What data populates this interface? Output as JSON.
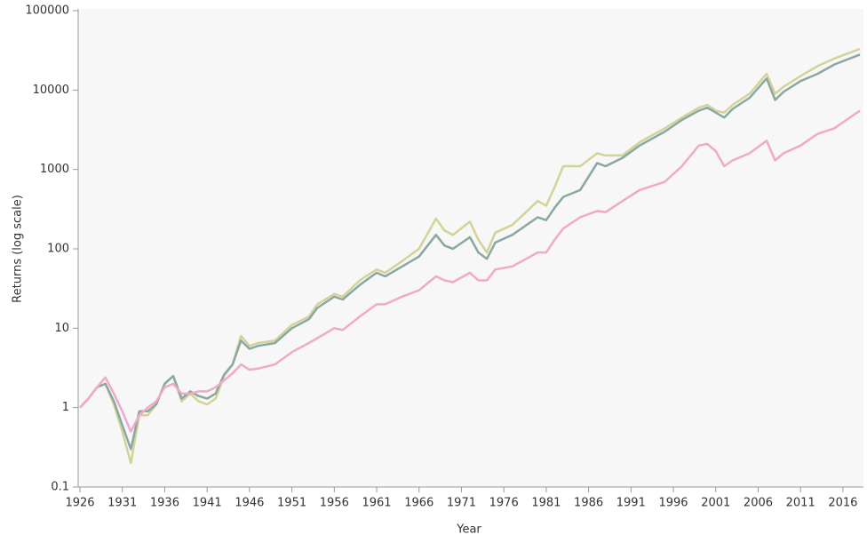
{
  "chart_data": {
    "type": "line",
    "x_label": "Year",
    "y_label": "Returns (log scale)",
    "log_y": true,
    "x": [
      1926,
      1927,
      1928,
      1929,
      1930,
      1931,
      1932,
      1933,
      1934,
      1935,
      1936,
      1937,
      1938,
      1939,
      1940,
      1941,
      1942,
      1943,
      1944,
      1945,
      1946,
      1947,
      1949,
      1951,
      1953,
      1954,
      1956,
      1957,
      1959,
      1961,
      1962,
      1964,
      1966,
      1968,
      1969,
      1970,
      1972,
      1973,
      1974,
      1975,
      1977,
      1980,
      1981,
      1982,
      1983,
      1985,
      1987,
      1988,
      1990,
      1992,
      1995,
      1997,
      1999,
      2000,
      2001,
      2002,
      2003,
      2005,
      2007,
      2008,
      2009,
      2011,
      2013,
      2015,
      2018
    ],
    "series": [
      {
        "color": "#d2d396",
        "values": [
          1,
          1.3,
          1.8,
          2,
          1.1,
          0.5,
          0.2,
          0.8,
          0.8,
          1.1,
          2,
          2.5,
          1.2,
          1.5,
          1.2,
          1.1,
          1.3,
          2.5,
          3.5,
          8,
          6,
          6.5,
          7,
          11,
          14,
          20,
          27,
          25,
          40,
          55,
          50,
          70,
          100,
          240,
          170,
          150,
          220,
          130,
          90,
          160,
          200,
          400,
          350,
          600,
          1100,
          1100,
          1600,
          1500,
          1500,
          2200,
          3300,
          4500,
          6000,
          6500,
          5500,
          5200,
          6500,
          9000,
          16000,
          9000,
          11000,
          15000,
          20000,
          25000,
          33000
        ]
      },
      {
        "color": "#8aa8a3",
        "values": [
          1,
          1.3,
          1.8,
          2,
          1.2,
          0.6,
          0.3,
          0.9,
          0.9,
          1.1,
          2,
          2.5,
          1.3,
          1.6,
          1.4,
          1.3,
          1.5,
          2.6,
          3.5,
          7,
          5.5,
          6,
          6.5,
          10,
          13,
          18,
          25,
          23,
          35,
          50,
          45,
          60,
          80,
          150,
          110,
          100,
          140,
          90,
          75,
          120,
          150,
          250,
          230,
          330,
          450,
          550,
          1200,
          1100,
          1400,
          2000,
          3000,
          4200,
          5500,
          6000,
          5200,
          4500,
          5800,
          8000,
          14000,
          7500,
          9500,
          13000,
          16000,
          21000,
          28000
        ]
      },
      {
        "color": "#f2a8c9",
        "values": [
          1,
          1.3,
          1.8,
          2.4,
          1.5,
          0.9,
          0.5,
          0.8,
          1,
          1.2,
          1.8,
          2,
          1.5,
          1.5,
          1.6,
          1.6,
          1.8,
          2.2,
          2.7,
          3.5,
          3,
          3.1,
          3.5,
          5,
          6.5,
          7.5,
          10,
          9.5,
          14,
          20,
          20,
          25,
          30,
          45,
          40,
          38,
          50,
          40,
          40,
          55,
          60,
          90,
          90,
          130,
          180,
          250,
          300,
          290,
          400,
          550,
          700,
          1100,
          2000,
          2100,
          1700,
          1100,
          1300,
          1600,
          2300,
          1300,
          1600,
          2000,
          2800,
          3300,
          5500
        ]
      }
    ],
    "xlim": [
      1926,
      2018
    ],
    "ylim": [
      0.1,
      100000
    ],
    "xticks": [
      1926,
      1931,
      1936,
      1941,
      1946,
      1951,
      1956,
      1961,
      1966,
      1971,
      1976,
      1981,
      1986,
      1991,
      1996,
      2001,
      2006,
      2011,
      2016
    ],
    "yticks": [
      0.1,
      1,
      10,
      100,
      1000,
      10000,
      100000
    ]
  }
}
